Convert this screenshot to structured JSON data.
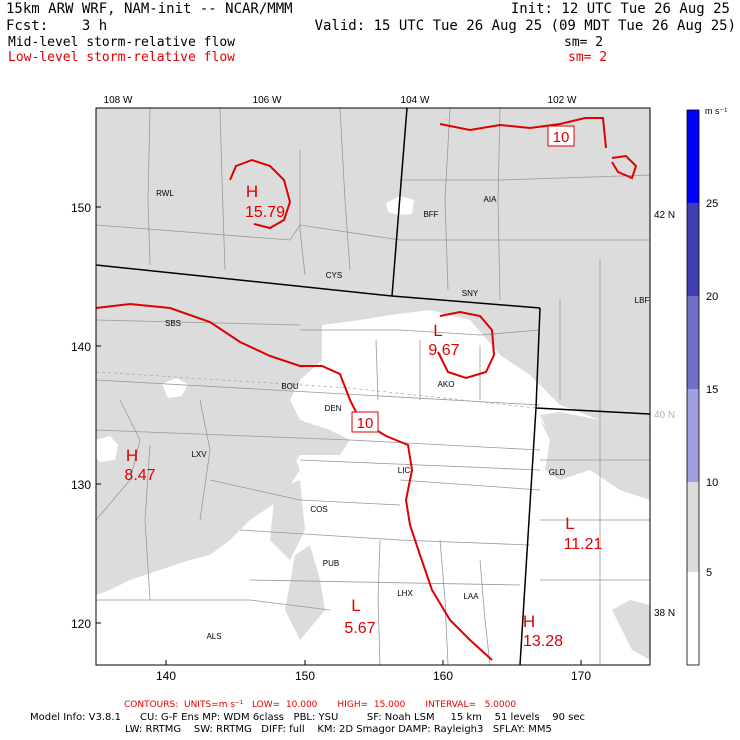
{
  "header": {
    "title": "15km ARW WRF, NAM-init -- NCAR/MMM",
    "init": "Init: 12 UTC Tue 26 Aug 25",
    "fcst": "Fcst:    3 h",
    "valid": "Valid: 15 UTC Tue 26 Aug 25 (09 MDT Tue 26 Aug 25)",
    "field1": "Mid-level storm-relative flow",
    "field1_sm": "sm= 2",
    "field2": "Low-level storm-relative flow",
    "field2_sm": "sm= 2"
  },
  "map": {
    "lon_labels": [
      "108 W",
      "106 W",
      "104 W",
      "102 W"
    ],
    "lat_labels": [
      "42 N",
      "40 N",
      "38 N"
    ],
    "grid_x_ticks": [
      "140",
      "150",
      "160",
      "170"
    ],
    "grid_y_ticks": [
      "150",
      "140",
      "130",
      "120"
    ],
    "stations": [
      "RWL",
      "BFF",
      "AIA",
      "CYS",
      "SNY",
      "LBF",
      "SBS",
      "BOU",
      "DEN",
      "AKO",
      "LXV",
      "LIC",
      "GLD",
      "COS",
      "PUB",
      "LHX",
      "LAA",
      "ALS"
    ],
    "extrema": [
      {
        "kind": "H",
        "value": "15.79"
      },
      {
        "kind": "L",
        "value": "9.67"
      },
      {
        "kind": "H",
        "value": "8.47"
      },
      {
        "kind": "L",
        "value": "11.21"
      },
      {
        "kind": "L",
        "value": "5.67"
      },
      {
        "kind": "H",
        "value": "13.28"
      }
    ],
    "contour_labels": [
      "10",
      "10"
    ],
    "fill_color": "#dcdcdc",
    "contour_color": "#e00000"
  },
  "colorbar": {
    "units": "m s⁻¹",
    "levels": [
      "5",
      "10",
      "15",
      "20",
      "25"
    ],
    "colors": [
      "#ffffff",
      "#dcdcdc",
      "#a0a0e0",
      "#7070c8",
      "#4040b0",
      "#0000ff"
    ]
  },
  "footer": {
    "contours": "CONTOURS:  UNITS=m s⁻¹   LOW=  10.000       HIGH=  15.000       INTERVAL=   5.0000",
    "model1": "Model Info: V3.8.1      CU: G-F Ens MP: WDM 6class   PBL: YSU         SF: Noah LSM     15 km    51 levels    90 sec",
    "model2": "LW: RRTMG    SW: RRTMG   DIFF: full    KM: 2D Smagor DAMP: Rayleigh3   SFLAY: MM5"
  }
}
